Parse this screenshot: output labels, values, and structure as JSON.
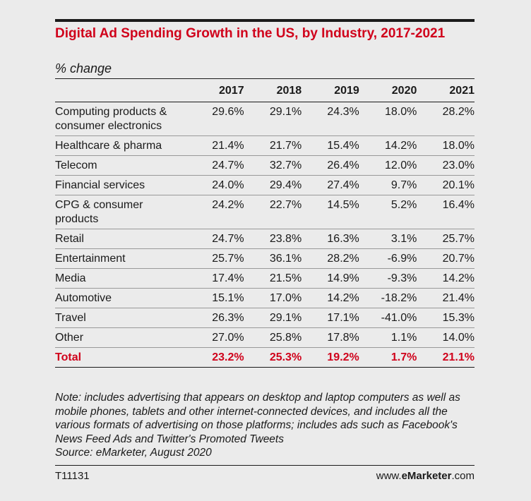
{
  "header": {
    "title": "Digital Ad Spending Growth in the US, by Industry, 2017-2021",
    "subtitle": "% change"
  },
  "chart_data": {
    "type": "table",
    "title": "Digital Ad Spending Growth in the US, by Industry, 2017-2021",
    "subtitle": "% change",
    "columns": [
      "2017",
      "2018",
      "2019",
      "2020",
      "2021"
    ],
    "rows": [
      {
        "label": "Computing products & consumer electronics",
        "values": [
          "29.6%",
          "29.1%",
          "24.3%",
          "18.0%",
          "28.2%"
        ]
      },
      {
        "label": "Healthcare & pharma",
        "values": [
          "21.4%",
          "21.7%",
          "15.4%",
          "14.2%",
          "18.0%"
        ]
      },
      {
        "label": "Telecom",
        "values": [
          "24.7%",
          "32.7%",
          "26.4%",
          "12.0%",
          "23.0%"
        ]
      },
      {
        "label": "Financial services",
        "values": [
          "24.0%",
          "29.4%",
          "27.4%",
          "9.7%",
          "20.1%"
        ]
      },
      {
        "label": "CPG & consumer products",
        "values": [
          "24.2%",
          "22.7%",
          "14.5%",
          "5.2%",
          "16.4%"
        ]
      },
      {
        "label": "Retail",
        "values": [
          "24.7%",
          "23.8%",
          "16.3%",
          "3.1%",
          "25.7%"
        ]
      },
      {
        "label": "Entertainment",
        "values": [
          "25.7%",
          "36.1%",
          "28.2%",
          "-6.9%",
          "20.7%"
        ]
      },
      {
        "label": "Media",
        "values": [
          "17.4%",
          "21.5%",
          "14.9%",
          "-9.3%",
          "14.2%"
        ]
      },
      {
        "label": "Automotive",
        "values": [
          "15.1%",
          "17.0%",
          "14.2%",
          "-18.2%",
          "21.4%"
        ]
      },
      {
        "label": "Travel",
        "values": [
          "26.3%",
          "29.1%",
          "17.1%",
          "-41.0%",
          "15.3%"
        ]
      },
      {
        "label": "Other",
        "values": [
          "27.0%",
          "25.8%",
          "17.8%",
          "1.1%",
          "14.0%"
        ]
      }
    ],
    "total": {
      "label": "Total",
      "values": [
        "23.2%",
        "25.3%",
        "19.2%",
        "1.7%",
        "21.1%"
      ]
    }
  },
  "note": {
    "text": "Note: includes advertising that appears on desktop and laptop computers as well as mobile phones, tablets and other internet-connected devices, and includes all the various formats of advertising on those platforms; includes ads such as Facebook's News Feed Ads and Twitter's Promoted Tweets",
    "source": "Source: eMarketer, August 2020"
  },
  "footer": {
    "chart_id": "T11131",
    "site_prefix": "www.",
    "site_brand": "eMarketer",
    "site_suffix": ".com"
  },
  "colors": {
    "accent": "#d0021b",
    "text": "#1a1a1a",
    "background": "#ebebeb"
  }
}
